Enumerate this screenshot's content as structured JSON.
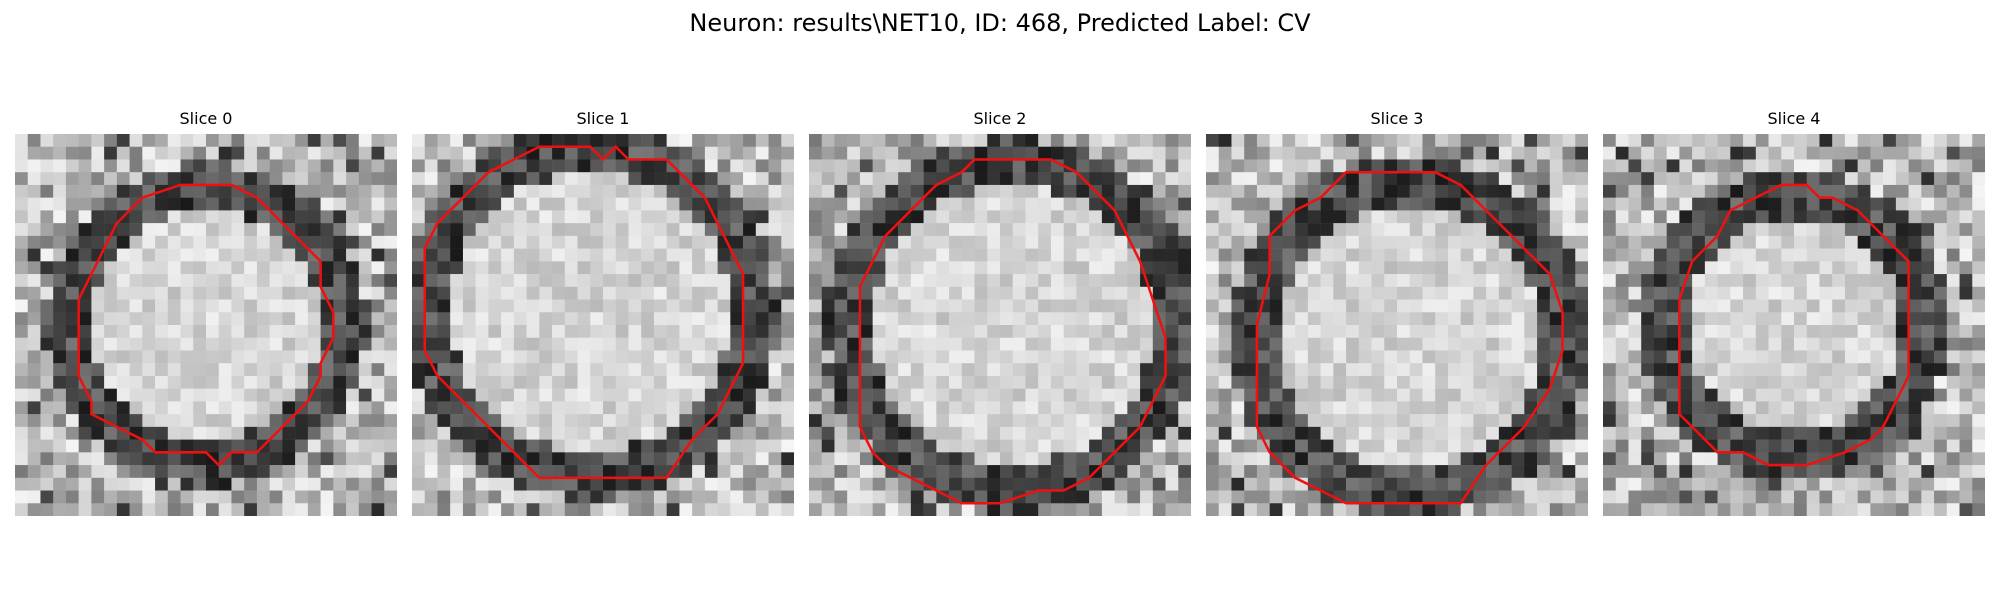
{
  "figure": {
    "title": "Neuron: results\\NET10, ID: 468, Predicted Label: CV"
  },
  "colors": {
    "contour": "#ee1111",
    "dark_pixel": "#1a1a1a",
    "light_pixel": "#f4f4f4"
  },
  "panels": [
    {
      "title": "Slice 0",
      "contour": [
        [
          15,
          4
        ],
        [
          17,
          4
        ],
        [
          19,
          5
        ],
        [
          20,
          6
        ],
        [
          22,
          8
        ],
        [
          23,
          9
        ],
        [
          24,
          10
        ],
        [
          24,
          12
        ],
        [
          25,
          14
        ],
        [
          25,
          16
        ],
        [
          24,
          18
        ],
        [
          24,
          19
        ],
        [
          23,
          21
        ],
        [
          21,
          23
        ],
        [
          19,
          25
        ],
        [
          17,
          25
        ],
        [
          16,
          26
        ],
        [
          15,
          25
        ],
        [
          11,
          25
        ],
        [
          10,
          24
        ],
        [
          8,
          23
        ],
        [
          6,
          22
        ],
        [
          6,
          21
        ],
        [
          5,
          19
        ],
        [
          5,
          16
        ],
        [
          5,
          13
        ],
        [
          6,
          11
        ],
        [
          7,
          9
        ],
        [
          8,
          7
        ],
        [
          10,
          5
        ],
        [
          13,
          4
        ]
      ]
    },
    {
      "title": "Slice 1",
      "contour": [
        [
          10,
          1
        ],
        [
          14,
          1
        ],
        [
          15,
          2
        ],
        [
          16,
          1
        ],
        [
          17,
          2
        ],
        [
          20,
          2
        ],
        [
          22,
          4
        ],
        [
          23,
          5
        ],
        [
          24,
          7
        ],
        [
          25,
          9
        ],
        [
          26,
          11
        ],
        [
          26,
          14
        ],
        [
          26,
          18
        ],
        [
          25,
          20
        ],
        [
          24,
          22
        ],
        [
          22,
          24
        ],
        [
          20,
          27
        ],
        [
          18,
          27
        ],
        [
          16,
          27
        ],
        [
          13,
          27
        ],
        [
          10,
          27
        ],
        [
          8,
          25
        ],
        [
          6,
          23
        ],
        [
          4,
          21
        ],
        [
          2,
          19
        ],
        [
          1,
          17
        ],
        [
          1,
          13
        ],
        [
          1,
          9
        ],
        [
          2,
          7
        ],
        [
          4,
          5
        ],
        [
          6,
          3
        ],
        [
          8,
          2
        ]
      ]
    },
    {
      "title": "Slice 2",
      "contour": [
        [
          13,
          2
        ],
        [
          19,
          2
        ],
        [
          21,
          3
        ],
        [
          22,
          4
        ],
        [
          24,
          6
        ],
        [
          25,
          8
        ],
        [
          26,
          10
        ],
        [
          27,
          13
        ],
        [
          28,
          16
        ],
        [
          28,
          19
        ],
        [
          27,
          21
        ],
        [
          26,
          23
        ],
        [
          24,
          25
        ],
        [
          22,
          27
        ],
        [
          20,
          28
        ],
        [
          18,
          28
        ],
        [
          15,
          29
        ],
        [
          12,
          29
        ],
        [
          10,
          28
        ],
        [
          8,
          27
        ],
        [
          6,
          26
        ],
        [
          5,
          25
        ],
        [
          4,
          23
        ],
        [
          4,
          20
        ],
        [
          4,
          16
        ],
        [
          4,
          12
        ],
        [
          5,
          10
        ],
        [
          6,
          8
        ],
        [
          8,
          6
        ],
        [
          10,
          4
        ],
        [
          12,
          3
        ]
      ]
    },
    {
      "title": "Slice 3",
      "contour": [
        [
          11,
          3
        ],
        [
          14,
          3
        ],
        [
          18,
          3
        ],
        [
          20,
          4
        ],
        [
          21,
          5
        ],
        [
          23,
          7
        ],
        [
          25,
          9
        ],
        [
          27,
          11
        ],
        [
          28,
          14
        ],
        [
          28,
          17
        ],
        [
          27,
          20
        ],
        [
          25,
          23
        ],
        [
          22,
          26
        ],
        [
          20,
          29
        ],
        [
          16,
          29
        ],
        [
          11,
          29
        ],
        [
          9,
          28
        ],
        [
          7,
          27
        ],
        [
          6,
          26
        ],
        [
          5,
          25
        ],
        [
          4,
          23
        ],
        [
          4,
          19
        ],
        [
          4,
          15
        ],
        [
          5,
          11
        ],
        [
          5,
          8
        ],
        [
          7,
          6
        ],
        [
          9,
          5
        ]
      ]
    },
    {
      "title": "Slice 4",
      "contour": [
        [
          14,
          4
        ],
        [
          16,
          4
        ],
        [
          17,
          5
        ],
        [
          18,
          5
        ],
        [
          20,
          6
        ],
        [
          21,
          7
        ],
        [
          23,
          9
        ],
        [
          24,
          10
        ],
        [
          24,
          13
        ],
        [
          24,
          16
        ],
        [
          24,
          19
        ],
        [
          23,
          21
        ],
        [
          22,
          23
        ],
        [
          21,
          24
        ],
        [
          19,
          25
        ],
        [
          16,
          26
        ],
        [
          13,
          26
        ],
        [
          11,
          25
        ],
        [
          9,
          25
        ],
        [
          7,
          23
        ],
        [
          6,
          22
        ],
        [
          6,
          19
        ],
        [
          6,
          16
        ],
        [
          6,
          13
        ],
        [
          7,
          10
        ],
        [
          9,
          8
        ],
        [
          10,
          6
        ],
        [
          12,
          5
        ]
      ]
    }
  ]
}
